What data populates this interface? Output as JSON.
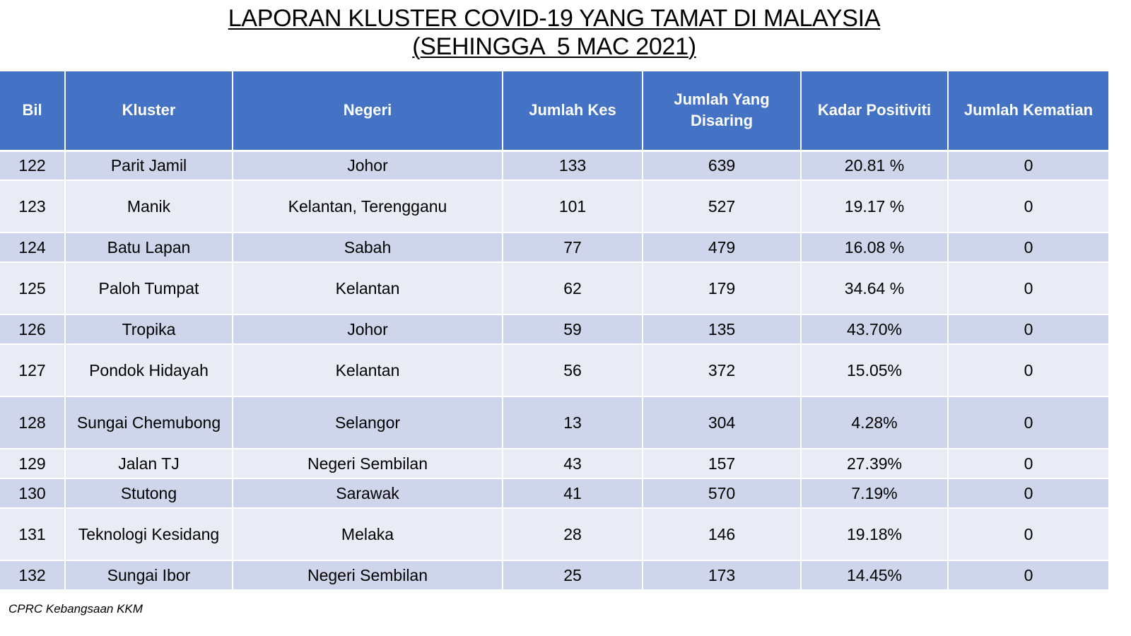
{
  "title": {
    "line1": "LAPORAN KLUSTER COVID-19 YANG TAMAT DI MALAYSIA",
    "line2": "(SEHINGGA  5 MAC 2021)"
  },
  "table": {
    "headers": {
      "bil": "Bil",
      "kluster": "Kluster",
      "negeri": "Negeri",
      "jumlah_kes": "Jumlah Kes",
      "jumlah_disaring": "Jumlah Yang Disaring",
      "kadar_positiviti": "Kadar Positiviti",
      "jumlah_kematian": "Jumlah Kematian"
    },
    "rows": [
      {
        "bil": "122",
        "kluster": "Parit Jamil",
        "negeri": "Johor",
        "kes": "133",
        "disaring": "639",
        "positiviti": "20.81 %",
        "kematian": "0"
      },
      {
        "bil": "123",
        "kluster": "Manik",
        "negeri": "Kelantan, Terengganu",
        "kes": "101",
        "disaring": "527",
        "positiviti": "19.17 %",
        "kematian": "0"
      },
      {
        "bil": "124",
        "kluster": "Batu Lapan",
        "negeri": "Sabah",
        "kes": "77",
        "disaring": "479",
        "positiviti": "16.08 %",
        "kematian": "0"
      },
      {
        "bil": "125",
        "kluster": "Paloh Tumpat",
        "negeri": "Kelantan",
        "kes": "62",
        "disaring": "179",
        "positiviti": "34.64 %",
        "kematian": "0"
      },
      {
        "bil": "126",
        "kluster": "Tropika",
        "negeri": "Johor",
        "kes": "59",
        "disaring": "135",
        "positiviti": "43.70%",
        "kematian": "0"
      },
      {
        "bil": "127",
        "kluster": "Pondok Hidayah",
        "negeri": "Kelantan",
        "kes": "56",
        "disaring": "372",
        "positiviti": "15.05%",
        "kematian": "0"
      },
      {
        "bil": "128",
        "kluster": "Sungai Chemubong",
        "negeri": "Selangor",
        "kes": "13",
        "disaring": "304",
        "positiviti": "4.28%",
        "kematian": "0"
      },
      {
        "bil": "129",
        "kluster": "Jalan TJ",
        "negeri": "Negeri Sembilan",
        "kes": "43",
        "disaring": "157",
        "positiviti": "27.39%",
        "kematian": "0"
      },
      {
        "bil": "130",
        "kluster": "Stutong",
        "negeri": "Sarawak",
        "kes": "41",
        "disaring": "570",
        "positiviti": "7.19%",
        "kematian": "0"
      },
      {
        "bil": "131",
        "kluster": "Teknologi Kesidang",
        "negeri": "Melaka",
        "kes": "28",
        "disaring": "146",
        "positiviti": "19.18%",
        "kematian": "0"
      },
      {
        "bil": "132",
        "kluster": "Sungai Ibor",
        "negeri": "Negeri Sembilan",
        "kes": "25",
        "disaring": "173",
        "positiviti": "14.45%",
        "kematian": "0"
      }
    ]
  },
  "footer": {
    "source": "CPRC Kebangsaan KKM"
  },
  "colors": {
    "header_bg": "#4472c4",
    "row_dark": "#cfd5ea",
    "row_light": "#e9ebf5"
  }
}
